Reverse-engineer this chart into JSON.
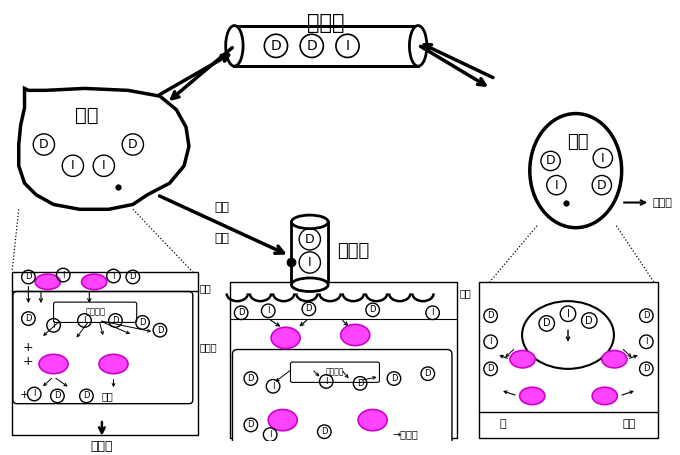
{
  "bg_color": "#ffffff",
  "title": "循環血",
  "organ_liver": "肝臓",
  "organ_kidney": "腎臓",
  "organ_gi": "消化管",
  "label_hepatocyte": "肝細胞",
  "label_bile": "胆汁",
  "label_feces": "糞中へ",
  "label_urine_to": "尿中へ",
  "label_portal_to": "→門脈へ",
  "label_portal_vein": "門脈",
  "label_bile_arrow": "胆汁",
  "label_intestine": "脳管",
  "label_blood": "血液",
  "label_urine": "尿",
  "label_blood2": "血液",
  "label_metabolic1": "代謝酵素",
  "label_metabolic2": "代謝酵素",
  "label_D": "D",
  "label_I": "I",
  "pink": "#ff44ff",
  "pink_edge": "#cc00cc"
}
